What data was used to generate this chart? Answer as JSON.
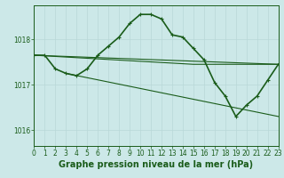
{
  "background_color": "#cce8e8",
  "grid_color": "#b8d8d8",
  "line_color": "#1a5c1a",
  "bottom_label": "Graphe pression niveau de la mer (hPa)",
  "xlim": [
    0,
    23
  ],
  "ylim": [
    1015.65,
    1018.75
  ],
  "yticks": [
    1016,
    1017,
    1018
  ],
  "xticks": [
    0,
    1,
    2,
    3,
    4,
    5,
    6,
    7,
    8,
    9,
    10,
    11,
    12,
    13,
    14,
    15,
    16,
    17,
    18,
    19,
    20,
    21,
    22,
    23
  ],
  "main_series": {
    "x": [
      0,
      1,
      2,
      3,
      4,
      5,
      6,
      7,
      8,
      9,
      10,
      11,
      12,
      13,
      14,
      15,
      16,
      17,
      18,
      19,
      20,
      21,
      22,
      23
    ],
    "y": [
      1017.65,
      1017.65,
      1017.35,
      1017.25,
      1017.2,
      1017.35,
      1017.65,
      1017.85,
      1018.05,
      1018.35,
      1018.55,
      1018.55,
      1018.45,
      1018.1,
      1018.05,
      1017.8,
      1017.55,
      1017.05,
      1016.75,
      1016.3,
      1016.55,
      1016.75,
      1017.1,
      1017.45
    ],
    "linewidth": 1.2,
    "markersize": 3.0
  },
  "straight_lines": [
    {
      "x": [
        0,
        23
      ],
      "y": [
        1017.65,
        1017.45
      ]
    },
    {
      "x": [
        0,
        15,
        23
      ],
      "y": [
        1017.65,
        1017.45,
        1017.45
      ]
    },
    {
      "x": [
        3,
        23
      ],
      "y": [
        1017.25,
        1016.3
      ]
    }
  ],
  "title_fontsize": 7.0,
  "tick_fontsize": 5.5
}
